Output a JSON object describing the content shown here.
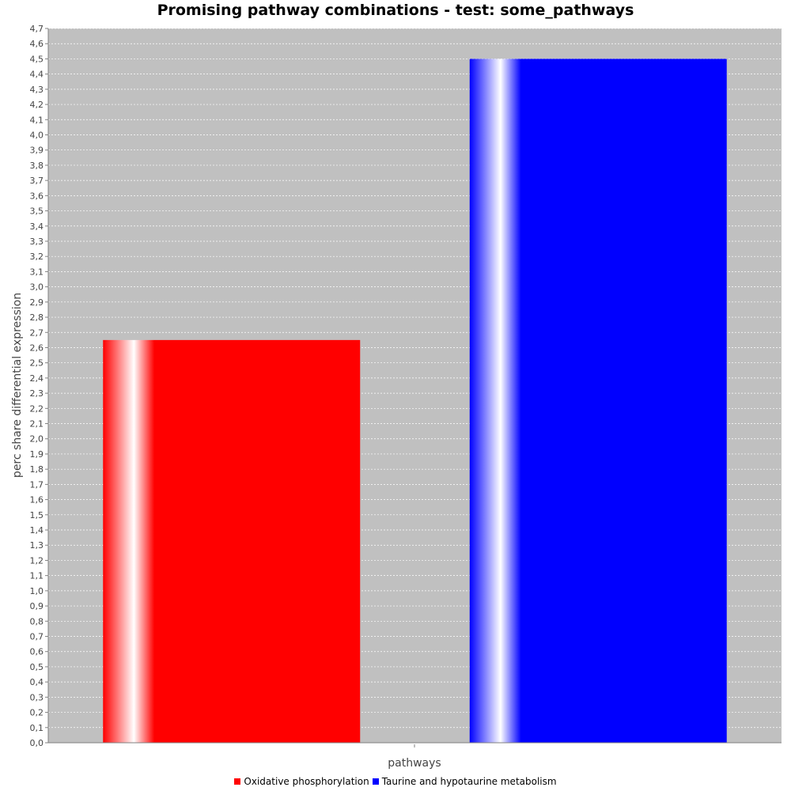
{
  "chart_data": {
    "type": "bar",
    "title": "Promising pathway combinations - test: some_pathways",
    "xlabel": "pathways",
    "ylabel": "perc share differential expression",
    "ylim": [
      0,
      4.7
    ],
    "ytick_step": 0.1,
    "decimal_separator": ",",
    "grid": true,
    "legend_position": "bottom",
    "plot_background": "#c0c0c0",
    "series": [
      {
        "name": "Oxidative phosphorylation",
        "value": 2.65,
        "color": "#ff0000"
      },
      {
        "name": "Taurine and hypotaurine metabolism",
        "value": 4.5,
        "color": "#0000ff"
      }
    ]
  }
}
